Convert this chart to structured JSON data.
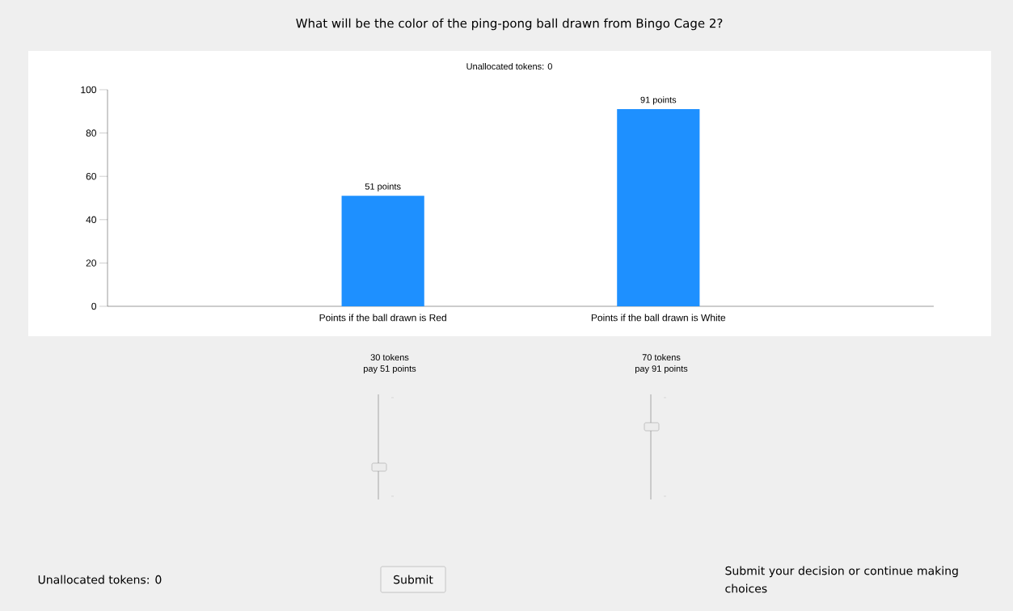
{
  "chart_data": {
    "type": "bar",
    "title": "What will be the color of the ping-pong ball drawn from Bingo Cage 2?",
    "subtitle": "Unallocated tokens: 0",
    "categories": [
      "Points if the ball drawn is Red",
      "Points if the ball drawn is White"
    ],
    "values": [
      51,
      91
    ],
    "color": "#1e90ff",
    "value_labels": [
      "51 points",
      "91 points"
    ],
    "ylim": [
      0,
      100
    ],
    "yticks": [
      0,
      20,
      40,
      60,
      80,
      100
    ],
    "grid": false,
    "annotations": [
      "30 tokens",
      "pay 51 points",
      "70 tokens",
      "pay 91 points",
      "Unallocated tokens: 0",
      "Submit",
      "Submit your decision or continue making choices"
    ]
  }
}
